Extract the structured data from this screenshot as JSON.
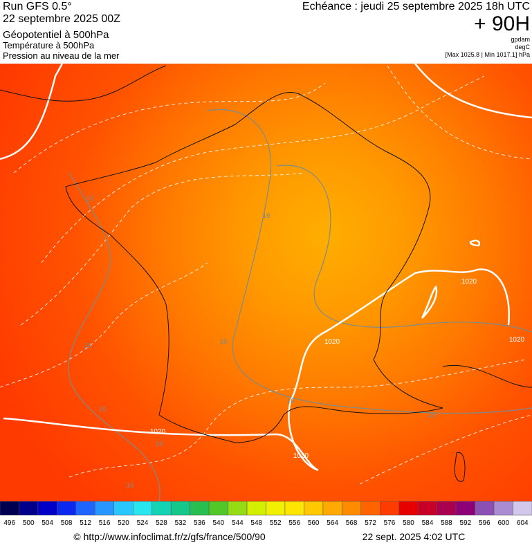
{
  "header": {
    "run": "Run GFS 0.5°",
    "run_date": "22 septembre 2025 00Z",
    "field_1": "Géopotentiel à 500hPa",
    "field_2": "Température à 500hPa",
    "field_3": "Pression au niveau de la mer",
    "valid_time": "Echéance : jeudi 25 septembre 2025 18h UTC",
    "lead": "+ 90H",
    "unit_1": "gpdam",
    "unit_2": "degC",
    "pressure_range": "[Max 1025.8 | Min 1017.1] hPa"
  },
  "contour_labels": [
    "16",
    "16",
    "16",
    "16",
    "16",
    "16",
    "16",
    "16",
    "16",
    "1020",
    "1020",
    "1020",
    "1020",
    "1020"
  ],
  "colorbar": {
    "values": [
      496,
      500,
      504,
      508,
      512,
      516,
      520,
      524,
      528,
      532,
      536,
      540,
      544,
      548,
      552,
      556,
      560,
      564,
      568,
      572,
      576,
      580,
      584,
      588,
      592,
      596,
      600,
      604
    ],
    "colors": [
      "#000050",
      "#00008c",
      "#0000c8",
      "#0a28f0",
      "#1e64ff",
      "#2896ff",
      "#28c8ff",
      "#28e6f0",
      "#14d2b4",
      "#14c88c",
      "#28be50",
      "#50c828",
      "#96dc14",
      "#d2f000",
      "#f0f000",
      "#ffe600",
      "#ffc800",
      "#ffaa00",
      "#ff8c00",
      "#ff6400",
      "#ff3c00",
      "#e60000",
      "#c80028",
      "#aa0050",
      "#8c0078",
      "#8c50b4",
      "#aa8cd2",
      "#d2c8eb"
    ]
  },
  "footer": {
    "source": "© http://www.infoclimat.fr/z/gfs/france/500/90",
    "generated": "22 sept. 2025  4:02 UTC"
  }
}
